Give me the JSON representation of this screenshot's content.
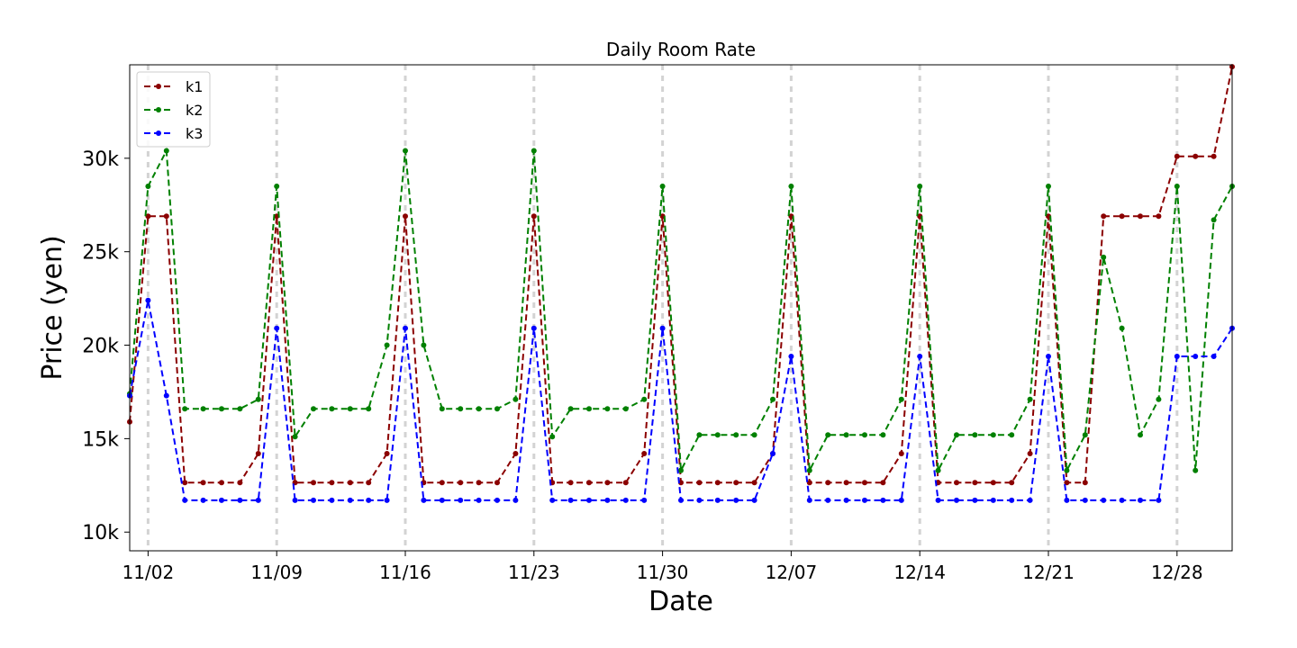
{
  "chart_data": {
    "type": "line",
    "title": "Daily Room Rate",
    "xlabel": "Date",
    "ylabel": "Price (yen)",
    "x_tick_labels": [
      "11/02",
      "11/09",
      "11/16",
      "11/23",
      "11/30",
      "12/07",
      "12/14",
      "12/21",
      "12/28"
    ],
    "x_tick_dates": [
      "2023-11-02",
      "2023-11-09",
      "2023-11-16",
      "2023-11-23",
      "2023-11-30",
      "2023-12-07",
      "2023-12-14",
      "2023-12-21",
      "2023-12-28"
    ],
    "y_tick_labels": [
      "10k",
      "15k",
      "20k",
      "25k",
      "30k"
    ],
    "y_tick_values": [
      10000,
      15000,
      20000,
      25000,
      30000
    ],
    "xlim": [
      "2023-11-01",
      "2023-12-31"
    ],
    "ylim": [
      9000,
      35000
    ],
    "grid": "vertical dashed at x ticks",
    "legend_position": "top-left",
    "x": [
      "2023-11-01",
      "2023-11-02",
      "2023-11-03",
      "2023-11-04",
      "2023-11-05",
      "2023-11-06",
      "2023-11-07",
      "2023-11-08",
      "2023-11-09",
      "2023-11-10",
      "2023-11-11",
      "2023-11-12",
      "2023-11-13",
      "2023-11-14",
      "2023-11-15",
      "2023-11-16",
      "2023-11-17",
      "2023-11-18",
      "2023-11-19",
      "2023-11-20",
      "2023-11-21",
      "2023-11-22",
      "2023-11-23",
      "2023-11-24",
      "2023-11-25",
      "2023-11-26",
      "2023-11-27",
      "2023-11-28",
      "2023-11-29",
      "2023-11-30",
      "2023-12-01",
      "2023-12-02",
      "2023-12-03",
      "2023-12-04",
      "2023-12-05",
      "2023-12-06",
      "2023-12-07",
      "2023-12-08",
      "2023-12-09",
      "2023-12-10",
      "2023-12-11",
      "2023-12-12",
      "2023-12-13",
      "2023-12-14",
      "2023-12-15",
      "2023-12-16",
      "2023-12-17",
      "2023-12-18",
      "2023-12-19",
      "2023-12-20",
      "2023-12-21",
      "2023-12-22",
      "2023-12-23",
      "2023-12-24",
      "2023-12-25",
      "2023-12-26",
      "2023-12-27",
      "2023-12-28",
      "2023-12-29",
      "2023-12-30",
      "2023-12-31"
    ],
    "series": [
      {
        "name": "k1",
        "color": "#8b0000",
        "values": [
          15900,
          26900,
          26900,
          12650,
          12650,
          12650,
          12650,
          14200,
          26900,
          12650,
          12650,
          12650,
          12650,
          12650,
          14200,
          26900,
          12650,
          12650,
          12650,
          12650,
          12650,
          14200,
          26900,
          12650,
          12650,
          12650,
          12650,
          12650,
          14200,
          26900,
          12650,
          12650,
          12650,
          12650,
          12650,
          14200,
          26900,
          12650,
          12650,
          12650,
          12650,
          12650,
          14200,
          26900,
          12650,
          12650,
          12650,
          12650,
          12650,
          14200,
          26900,
          12650,
          12650,
          26900,
          26900,
          26900,
          26900,
          30100,
          30100,
          30100,
          34900
        ]
      },
      {
        "name": "k2",
        "color": "#008000",
        "values": [
          17400,
          28500,
          30400,
          16600,
          16600,
          16600,
          16600,
          17100,
          28500,
          15100,
          16600,
          16600,
          16600,
          16600,
          20000,
          30400,
          20000,
          16600,
          16600,
          16600,
          16600,
          17100,
          30400,
          15100,
          16600,
          16600,
          16600,
          16600,
          17100,
          28500,
          13300,
          15200,
          15200,
          15200,
          15200,
          17100,
          28500,
          13300,
          15200,
          15200,
          15200,
          15200,
          17100,
          28500,
          13300,
          15200,
          15200,
          15200,
          15200,
          17100,
          28500,
          13300,
          15200,
          24700,
          20900,
          15200,
          17100,
          28500,
          13300,
          26700,
          28500
        ]
      },
      {
        "name": "k3",
        "color": "#0000ff",
        "values": [
          17300,
          22400,
          17300,
          11700,
          11700,
          11700,
          11700,
          11700,
          20900,
          11700,
          11700,
          11700,
          11700,
          11700,
          11700,
          20900,
          11700,
          11700,
          11700,
          11700,
          11700,
          11700,
          20900,
          11700,
          11700,
          11700,
          11700,
          11700,
          11700,
          20900,
          11700,
          11700,
          11700,
          11700,
          11700,
          14200,
          19400,
          11700,
          11700,
          11700,
          11700,
          11700,
          11700,
          19400,
          11700,
          11700,
          11700,
          11700,
          11700,
          11700,
          19400,
          11700,
          11700,
          11700,
          11700,
          11700,
          11700,
          19400,
          19400,
          19400,
          20900
        ]
      }
    ]
  }
}
